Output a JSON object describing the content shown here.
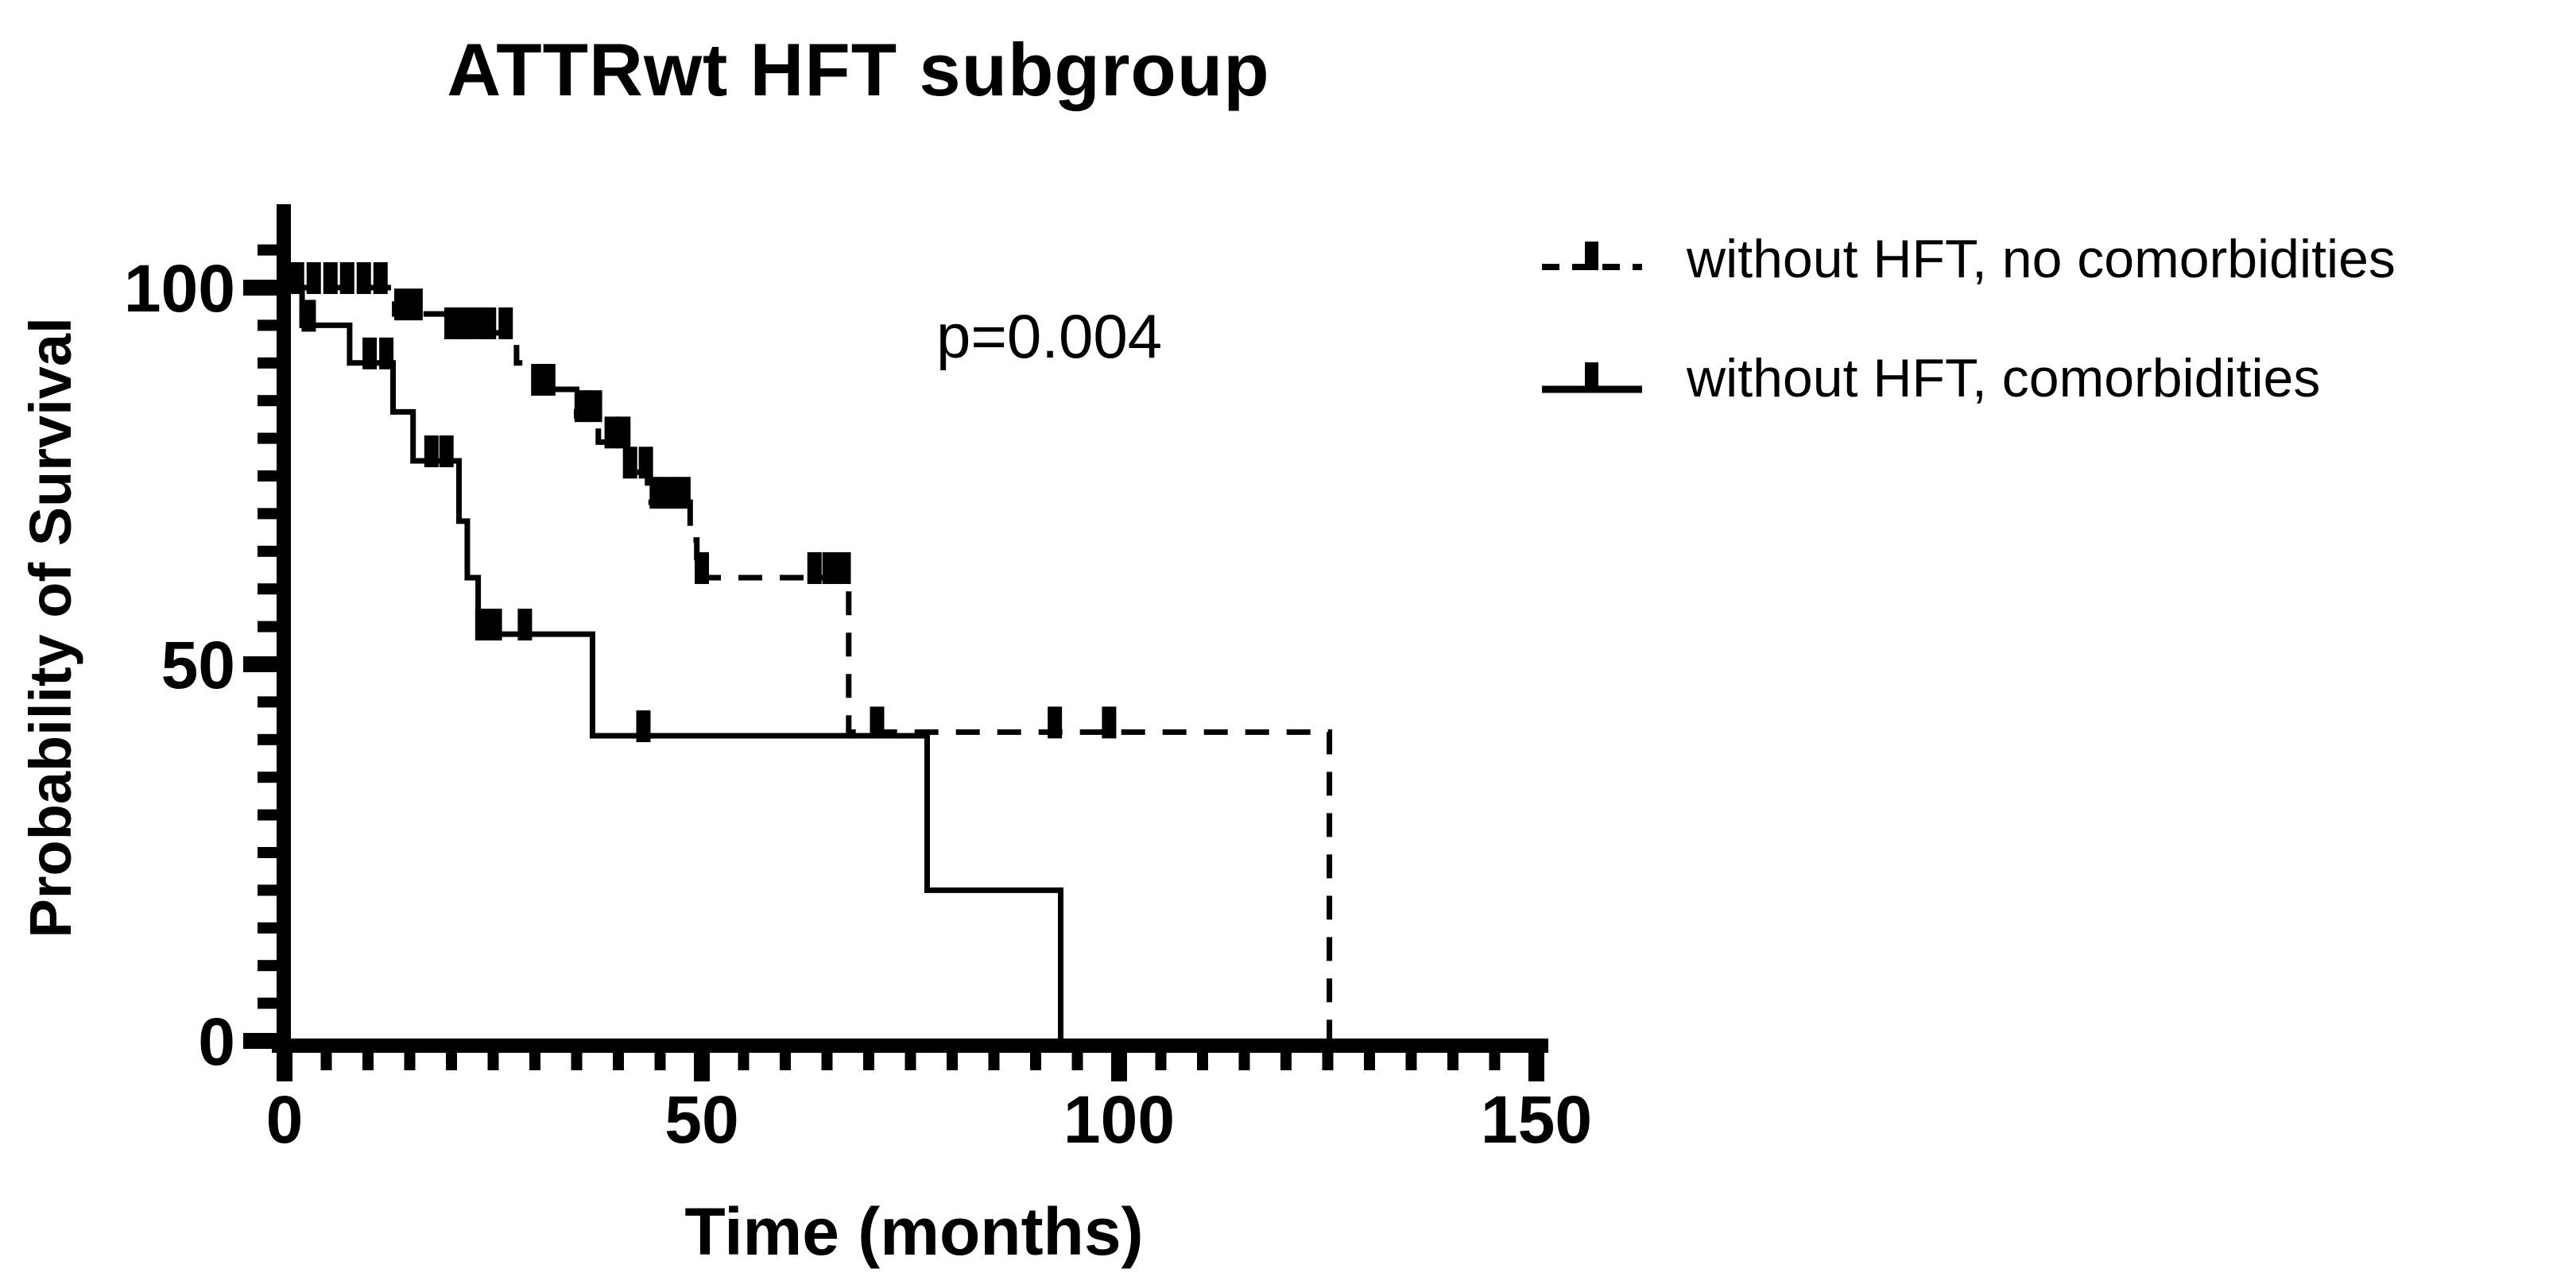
{
  "title": "ATTRwt HFT subgroup",
  "p_value_annotation": "p=0.004",
  "legend": {
    "items": [
      {
        "label": "without HFT, no comorbidities",
        "line_style": "dashed"
      },
      {
        "label": "without HFT, comorbidities",
        "line_style": "solid"
      }
    ]
  },
  "chart_data": {
    "type": "line",
    "subtype": "kaplan-meier-step",
    "title": "ATTRwt HFT subgroup",
    "xlabel": "Time (months)",
    "ylabel": "Probability of Survival",
    "annotation": "p=0.004",
    "xlim": [
      0,
      150
    ],
    "ylim": [
      0,
      111
    ],
    "x_major_ticks": [
      0,
      50,
      100,
      150
    ],
    "x_minor_tick_step": 5,
    "y_major_ticks": [
      0,
      50,
      100
    ],
    "y_minor_tick_step": 5,
    "grid": "off",
    "legend_position": "top-right",
    "series": [
      {
        "name": "without HFT, no comorbidities",
        "line_style": "dashed",
        "steps": [
          [
            0,
            100
          ],
          [
            13.2,
            96.5
          ],
          [
            19.2,
            94
          ],
          [
            27.8,
            90
          ],
          [
            30,
            86.5
          ],
          [
            35,
            83
          ],
          [
            37.6,
            79.5
          ],
          [
            40.9,
            75.5
          ],
          [
            43.5,
            71.5
          ],
          [
            48.6,
            66.5
          ],
          [
            49.4,
            61.5
          ],
          [
            67.6,
            41
          ],
          [
            125.2,
            0
          ]
        ],
        "censor_marks": [
          [
            1.5,
            100
          ],
          [
            3.5,
            100
          ],
          [
            5.5,
            100
          ],
          [
            7.5,
            100
          ],
          [
            9.5,
            100
          ],
          [
            11.5,
            100
          ],
          [
            14,
            96.5
          ],
          [
            15.7,
            96.5
          ],
          [
            20,
            94
          ],
          [
            21.5,
            94
          ],
          [
            23,
            94
          ],
          [
            24.5,
            94
          ],
          [
            26.5,
            94
          ],
          [
            30.4,
            86.5
          ],
          [
            31.6,
            86.5
          ],
          [
            35.6,
            83
          ],
          [
            37.2,
            83
          ],
          [
            39.2,
            79.5
          ],
          [
            40.6,
            79.5
          ],
          [
            41.4,
            75.5
          ],
          [
            43.3,
            75.5
          ],
          [
            44.6,
            71.5
          ],
          [
            46.2,
            71.5
          ],
          [
            47.8,
            71.5
          ],
          [
            50,
            61.5
          ],
          [
            63.5,
            61.5
          ],
          [
            65.3,
            61.5
          ],
          [
            67,
            61.5
          ],
          [
            71,
            41
          ],
          [
            92.3,
            41
          ],
          [
            98.8,
            41
          ]
        ]
      },
      {
        "name": "without HFT, comorbidities",
        "line_style": "solid",
        "steps": [
          [
            0,
            100
          ],
          [
            2.1,
            95
          ],
          [
            7.8,
            90
          ],
          [
            13,
            83.5
          ],
          [
            15.4,
            77
          ],
          [
            20.9,
            69
          ],
          [
            21.9,
            61.5
          ],
          [
            23.2,
            54
          ],
          [
            36.9,
            40.5
          ],
          [
            77,
            20
          ],
          [
            93,
            0
          ]
        ],
        "censor_marks": [
          [
            2.9,
            95
          ],
          [
            10.2,
            90
          ],
          [
            12.2,
            90
          ],
          [
            17.6,
            77
          ],
          [
            19.4,
            77
          ],
          [
            23.7,
            54
          ],
          [
            25.2,
            54
          ],
          [
            28.8,
            54
          ],
          [
            43,
            40.5
          ]
        ]
      }
    ]
  }
}
